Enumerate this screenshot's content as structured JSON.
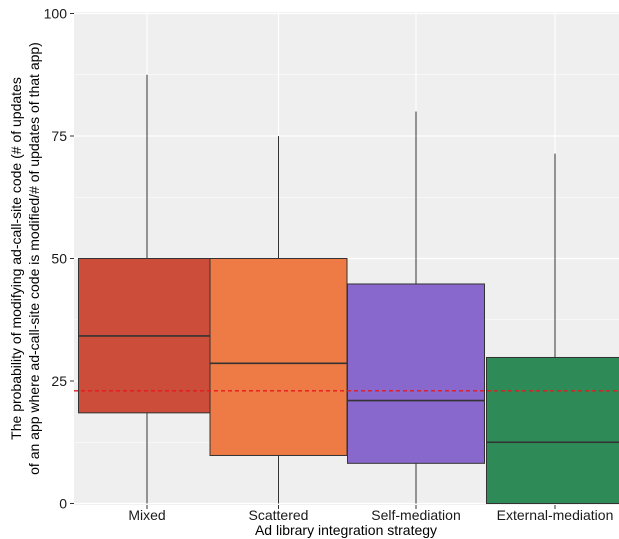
{
  "chart_data": {
    "type": "box",
    "title": "",
    "xlabel": "Ad library integration strategy",
    "ylabel_lines": [
      "The probability of modifying ad-call-site code (# of updates",
      "of an app where ad-call-site code is modified/# of updates of that app)"
    ],
    "ylim": [
      0,
      100
    ],
    "yticks": [
      0,
      25,
      50,
      75,
      100
    ],
    "categories": [
      "Mixed",
      "Scattered",
      "Self-mediation",
      "External-mediation"
    ],
    "boxes": [
      {
        "category": "Mixed",
        "min": 0,
        "q1": 18.5,
        "median": 34.2,
        "q3": 50,
        "max": 87.5,
        "color": "#CC4E3A"
      },
      {
        "category": "Scattered",
        "min": 0,
        "q1": 9.8,
        "median": 28.6,
        "q3": 50,
        "max": 75,
        "color": "#EE7B45"
      },
      {
        "category": "Self-mediation",
        "min": 0,
        "q1": 8.2,
        "median": 21,
        "q3": 44.8,
        "max": 80,
        "color": "#8968CD"
      },
      {
        "category": "External-mediation",
        "min": 0,
        "q1": 0,
        "median": 12.5,
        "q3": 29.8,
        "max": 71.4,
        "color": "#2E8B57"
      }
    ],
    "reference_line": {
      "value": 23,
      "color": "#E41A1C",
      "style": "dashed"
    },
    "grid": true,
    "panel_background": "#EFEFEF",
    "gridline_color": "#FFFFFF"
  }
}
